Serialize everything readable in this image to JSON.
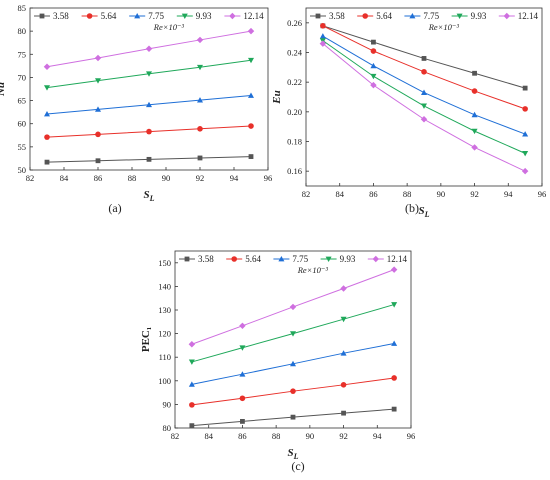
{
  "legend_note": "Re×10⁻³",
  "chart_data": [
    {
      "type": "line",
      "panel": "(a)",
      "xlabel": "S_L",
      "ylabel": "Nu",
      "xlim": [
        82,
        96
      ],
      "ylim": [
        50,
        85
      ],
      "xticks": [
        82,
        84,
        86,
        88,
        90,
        92,
        94,
        96
      ],
      "yticks": [
        50,
        55,
        60,
        65,
        70,
        75,
        80,
        85
      ],
      "x": [
        83,
        86,
        89,
        92,
        95
      ],
      "series": [
        {
          "name": "3.58",
          "color": "#555555",
          "marker": "square",
          "values": [
            51.7,
            52.0,
            52.3,
            52.6,
            52.9
          ]
        },
        {
          "name": "5.64",
          "color": "#e8302a",
          "marker": "circle",
          "values": [
            57.1,
            57.7,
            58.3,
            58.9,
            59.5
          ]
        },
        {
          "name": "7.75",
          "color": "#1f6fd6",
          "marker": "triangle-up",
          "values": [
            62.1,
            63.1,
            64.1,
            65.1,
            66.1
          ]
        },
        {
          "name": "9.93",
          "color": "#1fa85a",
          "marker": "triangle-down",
          "values": [
            67.8,
            69.3,
            70.8,
            72.2,
            73.7
          ]
        },
        {
          "name": "12.14",
          "color": "#cf6fe0",
          "marker": "diamond",
          "values": [
            72.3,
            74.2,
            76.2,
            78.1,
            80.0
          ]
        }
      ]
    },
    {
      "type": "line",
      "panel": "(b)",
      "xlabel": "S_L",
      "ylabel": "Eu",
      "xlim": [
        82,
        96
      ],
      "ylim": [
        0.15,
        0.27
      ],
      "xticks": [
        82,
        84,
        86,
        88,
        90,
        92,
        94,
        96
      ],
      "yticks": [
        0.16,
        0.18,
        0.2,
        0.22,
        0.24,
        0.26
      ],
      "ytick_decimals": 2,
      "x": [
        83,
        86,
        89,
        92,
        95
      ],
      "series": [
        {
          "name": "3.58",
          "color": "#555555",
          "marker": "square",
          "values": [
            0.258,
            0.247,
            0.236,
            0.226,
            0.216
          ]
        },
        {
          "name": "5.64",
          "color": "#e8302a",
          "marker": "circle",
          "values": [
            0.258,
            0.241,
            0.227,
            0.214,
            0.202
          ]
        },
        {
          "name": "7.75",
          "color": "#1f6fd6",
          "marker": "triangle-up",
          "values": [
            0.251,
            0.231,
            0.213,
            0.198,
            0.185
          ]
        },
        {
          "name": "9.93",
          "color": "#1fa85a",
          "marker": "triangle-down",
          "values": [
            0.248,
            0.224,
            0.204,
            0.187,
            0.172
          ]
        },
        {
          "name": "12.14",
          "color": "#cf6fe0",
          "marker": "diamond",
          "values": [
            0.246,
            0.218,
            0.195,
            0.176,
            0.16
          ]
        }
      ]
    },
    {
      "type": "line",
      "panel": "(c)",
      "xlabel": "S_L",
      "ylabel": "PEC₁",
      "xlim": [
        82,
        96
      ],
      "ylim": [
        80,
        155
      ],
      "xticks": [
        82,
        84,
        86,
        88,
        90,
        92,
        94,
        96
      ],
      "yticks": [
        80,
        90,
        100,
        110,
        120,
        130,
        140,
        150
      ],
      "x": [
        83,
        86,
        89,
        92,
        95
      ],
      "series": [
        {
          "name": "3.58",
          "color": "#555555",
          "marker": "square",
          "values": [
            81.0,
            82.8,
            84.6,
            86.3,
            88.0
          ]
        },
        {
          "name": "5.64",
          "color": "#e8302a",
          "marker": "circle",
          "values": [
            89.8,
            92.6,
            95.6,
            98.3,
            101.2
          ]
        },
        {
          "name": "7.75",
          "color": "#1f6fd6",
          "marker": "triangle-up",
          "values": [
            98.5,
            102.8,
            107.2,
            111.7,
            115.8
          ]
        },
        {
          "name": "9.93",
          "color": "#1fa85a",
          "marker": "triangle-down",
          "values": [
            108.0,
            114.0,
            120.0,
            126.1,
            132.3
          ]
        },
        {
          "name": "12.14",
          "color": "#cf6fe0",
          "marker": "diamond",
          "values": [
            115.5,
            123.3,
            131.3,
            139.1,
            147.1
          ]
        }
      ]
    }
  ]
}
